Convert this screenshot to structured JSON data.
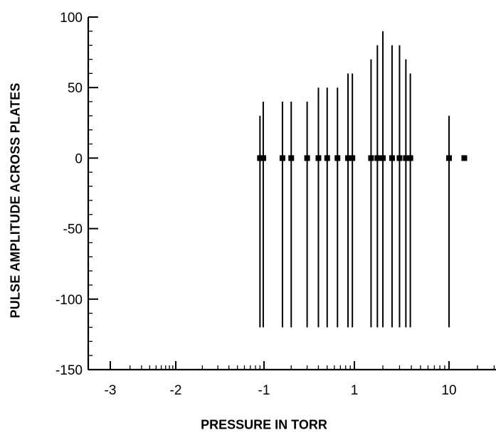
{
  "chart_data": {
    "type": "scatter",
    "title": "",
    "xlabel": "PRESSURE IN TORR",
    "ylabel": "PULSE AMPLITUDE ACROSS PLATES",
    "x_scale": "log",
    "x_tick_labels": [
      "-3",
      "-2",
      "-1",
      "1",
      "10"
    ],
    "y_ticks": [
      100,
      50,
      0,
      -50,
      -100,
      -150
    ],
    "ylim": [
      -150,
      100
    ],
    "grid": false,
    "legend": "none",
    "series": [
      {
        "points": [
          {
            "x": 0.09,
            "y": 0,
            "y_low": -120,
            "y_high": 30
          },
          {
            "x": 0.098,
            "y": 0,
            "y_low": -120,
            "y_high": 40
          },
          {
            "x": 0.16,
            "y": 0,
            "y_low": -120,
            "y_high": 40
          },
          {
            "x": 0.2,
            "y": 0,
            "y_low": -120,
            "y_high": 40
          },
          {
            "x": 0.3,
            "y": 0,
            "y_low": -120,
            "y_high": 40
          },
          {
            "x": 0.4,
            "y": 0,
            "y_low": -120,
            "y_high": 50
          },
          {
            "x": 0.5,
            "y": 0,
            "y_low": -120,
            "y_high": 50
          },
          {
            "x": 0.65,
            "y": 0,
            "y_low": -120,
            "y_high": 50
          },
          {
            "x": 0.85,
            "y": 0,
            "y_low": -120,
            "y_high": 60
          },
          {
            "x": 0.95,
            "y": 0,
            "y_low": -120,
            "y_high": 60
          },
          {
            "x": 1.5,
            "y": 0,
            "y_low": -120,
            "y_high": 70
          },
          {
            "x": 1.75,
            "y": 0,
            "y_low": -120,
            "y_high": 80
          },
          {
            "x": 2.0,
            "y": 0,
            "y_low": -120,
            "y_high": 90
          },
          {
            "x": 2.5,
            "y": 0,
            "y_low": -120,
            "y_high": 80
          },
          {
            "x": 3.0,
            "y": 0,
            "y_low": -120,
            "y_high": 80
          },
          {
            "x": 3.5,
            "y": 0,
            "y_low": -120,
            "y_high": 70
          },
          {
            "x": 3.9,
            "y": 0,
            "y_low": -120,
            "y_high": 60
          },
          {
            "x": 10,
            "y": 0,
            "y_low": -120,
            "y_high": 30
          },
          {
            "x": 14.5,
            "y": 0
          }
        ]
      }
    ]
  }
}
